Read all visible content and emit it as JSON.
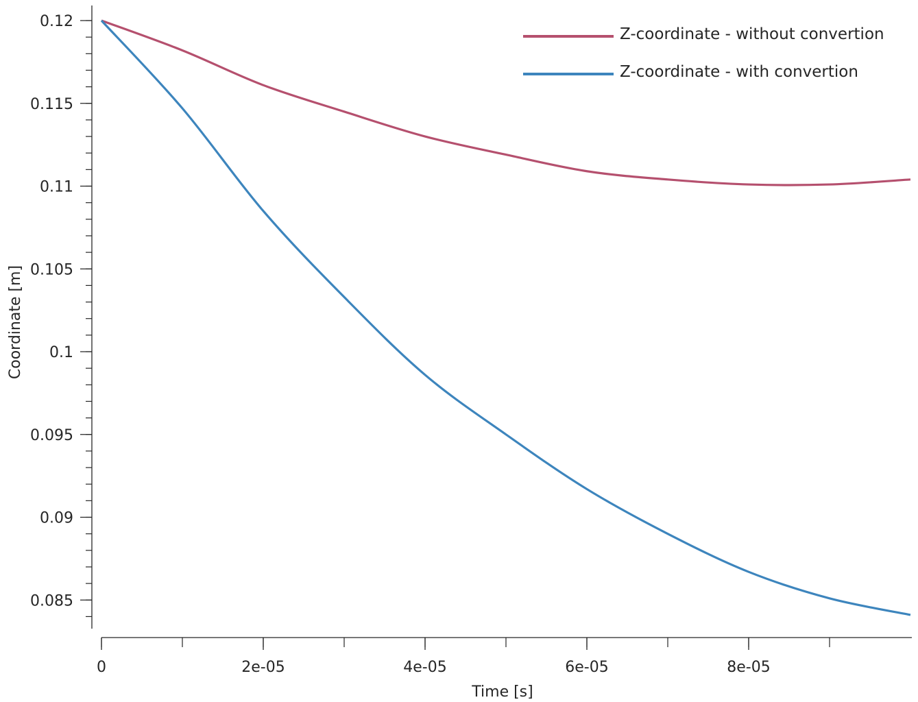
{
  "chart_data": {
    "type": "line",
    "title": "",
    "xlabel": "Time [s]",
    "ylabel": "Coordinate [m]",
    "xlim": [
      0,
      0.0001
    ],
    "ylim": [
      0.0837,
      0.1209
    ],
    "grid": false,
    "legend_position": "upper right",
    "x_ticks": [
      {
        "value": 0,
        "label": "0"
      },
      {
        "value": 2e-05,
        "label": "2e-05"
      },
      {
        "value": 4e-05,
        "label": "4e-05"
      },
      {
        "value": 6e-05,
        "label": "6e-05"
      },
      {
        "value": 8e-05,
        "label": "8e-05"
      }
    ],
    "x_minor_step": 1e-05,
    "y_ticks": [
      {
        "value": 0.12,
        "label": "0.12"
      },
      {
        "value": 0.115,
        "label": "0.115"
      },
      {
        "value": 0.11,
        "label": "0.11"
      },
      {
        "value": 0.105,
        "label": "0.105"
      },
      {
        "value": 0.1,
        "label": "0.1"
      },
      {
        "value": 0.095,
        "label": "0.095"
      },
      {
        "value": 0.09,
        "label": "0.09"
      },
      {
        "value": 0.085,
        "label": "0.085"
      }
    ],
    "y_minor_step": 0.001,
    "x": [
      0,
      1e-05,
      2e-05,
      3e-05,
      4e-05,
      5e-05,
      6e-05,
      7e-05,
      8e-05,
      9e-05,
      0.0001
    ],
    "series": [
      {
        "name": "Z-coordinate - without convertion",
        "color": "#b5506e",
        "values": [
          0.12,
          0.1182,
          0.1161,
          0.1145,
          0.113,
          0.1119,
          0.1109,
          0.1104,
          0.1101,
          0.1101,
          0.1104
        ]
      },
      {
        "name": "Z-coordinate - with convertion",
        "color": "#3d85bd",
        "values": [
          0.12,
          0.1147,
          0.1085,
          0.1033,
          0.0986,
          0.095,
          0.0917,
          0.089,
          0.0867,
          0.0851,
          0.0841
        ]
      }
    ]
  },
  "colors": {
    "axis": "#262626",
    "background": "#ffffff"
  }
}
